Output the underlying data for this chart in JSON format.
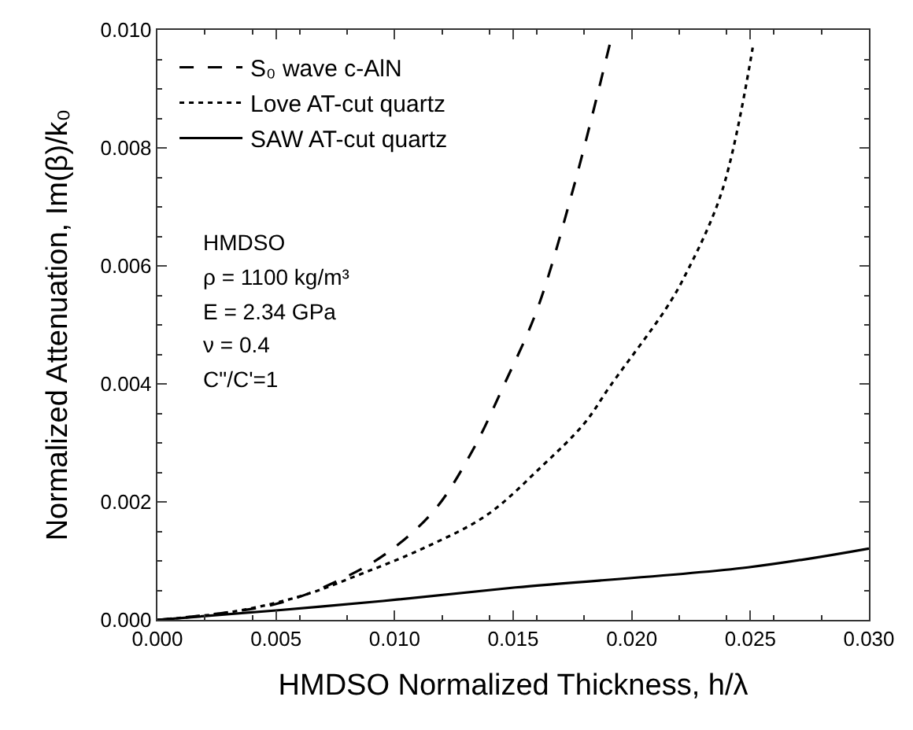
{
  "chart_data": {
    "type": "line",
    "xlabel": "HMDSO Normalized Thickness, h/λ",
    "ylabel": "Normalized Attenuation, Im(β)/k₀",
    "series": [
      {
        "name": "S₀ wave c-AlN",
        "color": "#000000",
        "line_style": "dashed",
        "x": [
          0,
          0.005,
          0.0077,
          0.0097,
          0.0117,
          0.0133,
          0.0146,
          0.016,
          0.0175,
          0.0191
        ],
        "values": [
          0,
          0.00027,
          0.00068,
          0.00114,
          0.00187,
          0.00288,
          0.00397,
          0.00525,
          0.00726,
          0.0098
        ]
      },
      {
        "name": "Love AT-cut quartz",
        "color": "#000000",
        "line_style": "dotted",
        "x": [
          0,
          0.0032,
          0.0061,
          0.0086,
          0.0113,
          0.0139,
          0.0162,
          0.018,
          0.0191,
          0.0214,
          0.0222,
          0.0238,
          0.0251
        ],
        "values": [
          0,
          0.00014,
          0.00041,
          0.00078,
          0.00123,
          0.00178,
          0.0026,
          0.00333,
          0.00397,
          0.00525,
          0.0058,
          0.00726,
          0.0097
        ]
      },
      {
        "name": "SAW AT-cut quartz",
        "color": "#000000",
        "line_style": "solid",
        "x": [
          0,
          0.005,
          0.0095,
          0.0151,
          0.0249,
          0.03
        ],
        "values": [
          0,
          0.00016,
          0.00032,
          0.00055,
          0.00089,
          0.00121
        ]
      }
    ],
    "annotations": [
      "HMDSO",
      "ρ = 1100 kg/m³",
      "E = 2.34 GPa",
      "ν = 0.4",
      "C\"/C'=1"
    ],
    "xlim": [
      0,
      0.03
    ],
    "xticks": [
      {
        "value": 0,
        "label": "0.000"
      },
      {
        "value": 0.005,
        "label": "0.005"
      },
      {
        "value": 0.01,
        "label": "0.010"
      },
      {
        "value": 0.015,
        "label": "0.015"
      },
      {
        "value": 0.02,
        "label": "0.020"
      },
      {
        "value": 0.025,
        "label": "0.025"
      },
      {
        "value": 0.03,
        "label": "0.030"
      }
    ],
    "ylim": [
      0,
      0.01
    ],
    "yticks": [
      {
        "value": 0,
        "label": "0.000"
      },
      {
        "value": 0.002,
        "label": "0.002"
      },
      {
        "value": 0.004,
        "label": "0.004"
      },
      {
        "value": 0.006,
        "label": "0.006"
      },
      {
        "value": 0.008,
        "label": "0.008"
      },
      {
        "value": 0.01,
        "label": "0.010"
      }
    ],
    "legend": "top left",
    "marker": "none"
  }
}
